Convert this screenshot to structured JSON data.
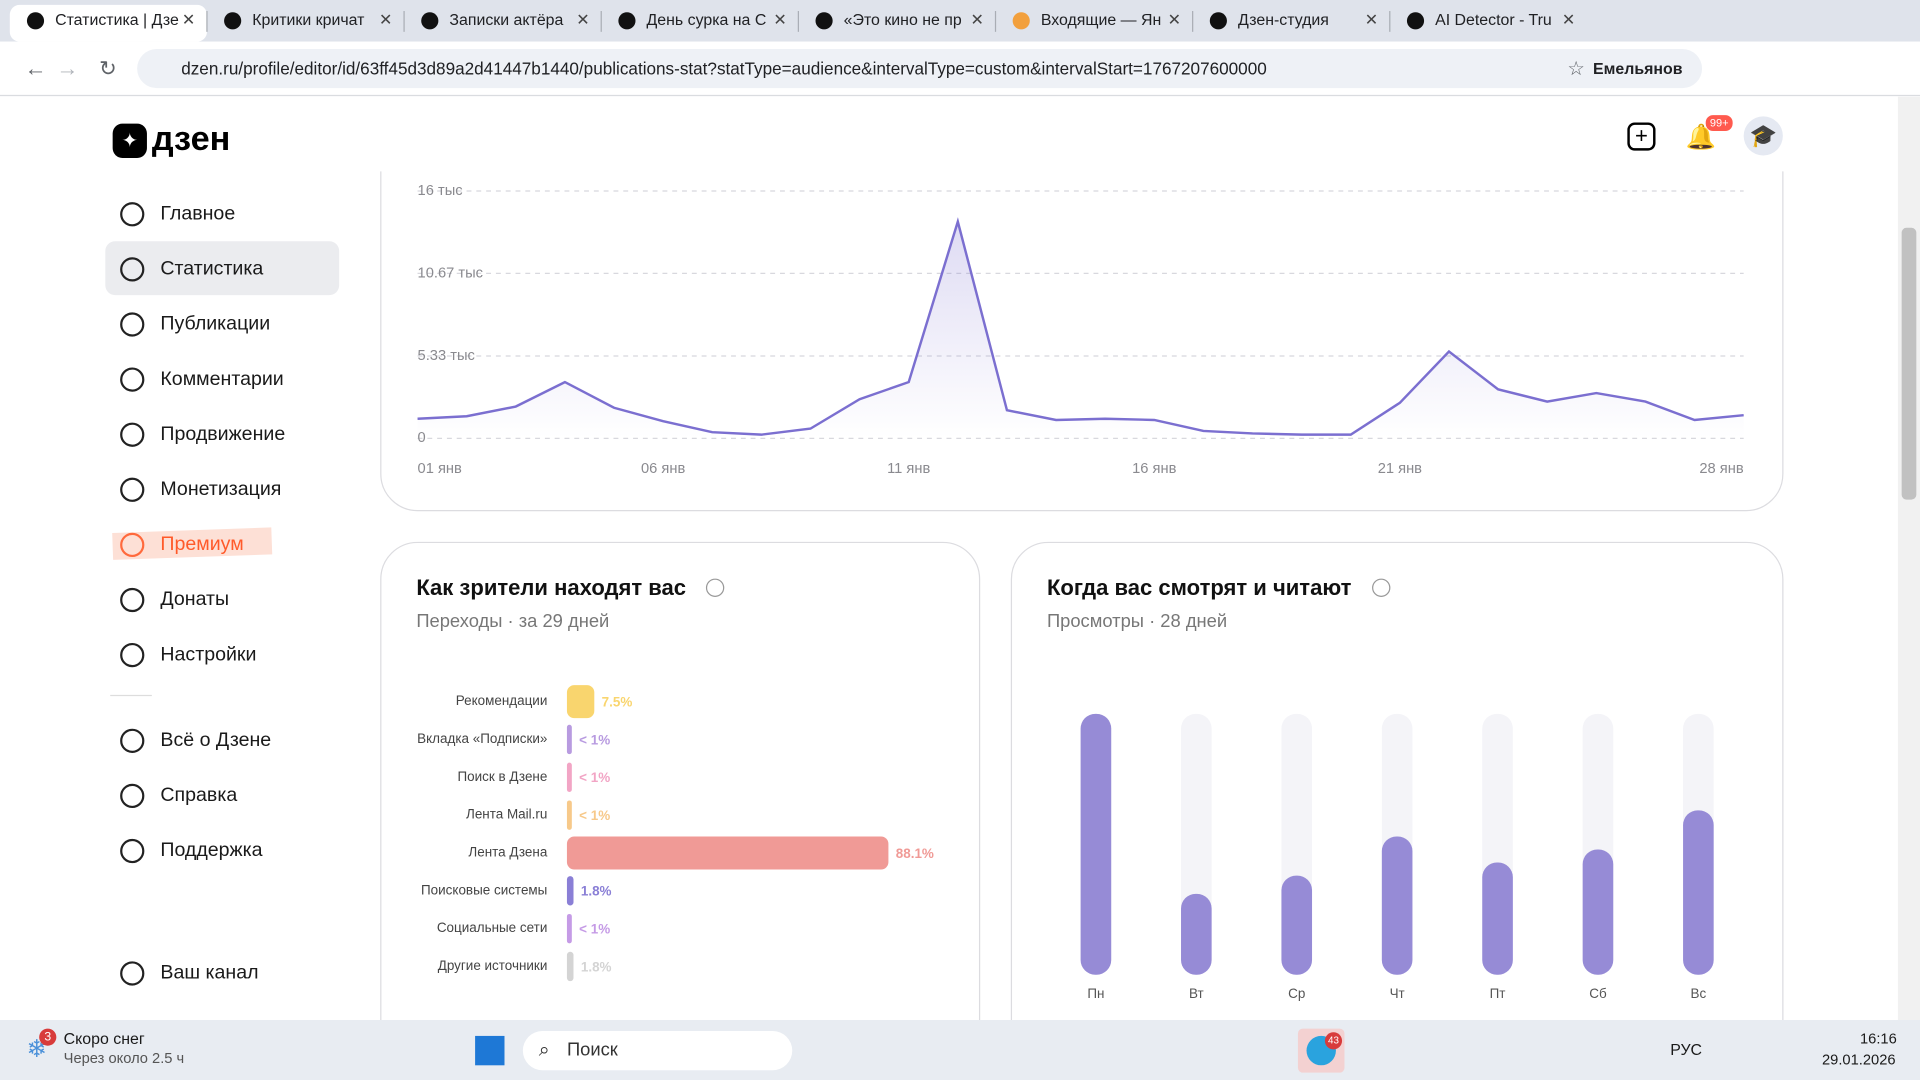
{
  "browser": {
    "tabs": [
      "Статистика | Дзе",
      "Критики кричат",
      "Записки актёра",
      "День сурка на С",
      "«Это кино не пр",
      "Входящие — Ян",
      "Дзен-студия",
      "AI Detector - Tru"
    ],
    "url": "dzen.ru/profile/editor/id/63ff45d3d89a2d41447b1440/publications-stat?statType=audience&intervalType=custom&intervalStart=1767207600000",
    "profile": "Емельянов"
  },
  "header": {
    "logo": "дзен",
    "notifications": "99+"
  },
  "nav": {
    "items": [
      "Главное",
      "Статистика",
      "Публикации",
      "Комментарии",
      "Продвижение",
      "Монетизация",
      "Премиум",
      "Донаты",
      "Настройки"
    ],
    "extra": [
      "Всё о Дзене",
      "Справка",
      "Поддержка"
    ],
    "channel": "Ваш канал"
  },
  "chart_data": [
    {
      "type": "line",
      "categories": [
        "01 янв",
        null,
        null,
        null,
        null,
        "06 янв",
        null,
        null,
        null,
        null,
        "11 янв",
        null,
        null,
        null,
        null,
        "16 янв",
        null,
        null,
        null,
        null,
        "21 янв",
        null,
        null,
        null,
        null,
        null,
        null,
        "28 янв"
      ],
      "series": [
        {
          "color": "#7b6fd0",
          "values": [
            1270,
            1430,
            2060,
            3640,
            1980,
            1110,
            400,
            240,
            630,
            2530,
            3640,
            14020,
            1820,
            1190,
            1270,
            1190,
            480,
            320,
            240,
            240,
            2300,
            5620,
            3170,
            2380,
            2930,
            2380,
            1190,
            1500
          ]
        }
      ],
      "ylim": [
        0,
        16000
      ],
      "yticks": [
        0,
        {
          "value": 5330,
          "label": "5.33 тыс"
        },
        {
          "value": 10670,
          "label": "10.67 тыс"
        },
        {
          "value": 16000,
          "label": "16 тыс"
        }
      ],
      "grid": true
    },
    {
      "type": "hbar",
      "title": "Как зрители находят вас",
      "subtitle": "Переходы · за 29 дней",
      "categories": [
        "Рекомендации",
        "Вкладка «Подписки»",
        "Поиск в Дзене",
        "Лента Mail.ru",
        "Лента Дзена",
        "Поисковые системы",
        "Социальные сети",
        "Другие источники"
      ],
      "values": [
        7.5,
        0.5,
        0.5,
        0.5,
        88.1,
        1.8,
        0.5,
        1.8
      ],
      "value_labels": [
        "7.5%",
        "< 1%",
        "< 1%",
        "< 1%",
        "88.1%",
        "1.8%",
        "< 1%",
        "1.8%"
      ],
      "colors": [
        "#f9d56e",
        "#b89be0",
        "#f2a5c5",
        "#f7c98a",
        "#f09a96",
        "#8a7fd6",
        "#c59be6",
        "#d4d4d4"
      ],
      "xlim": [
        0,
        100
      ]
    },
    {
      "type": "column",
      "title": "Когда вас смотрят и читают",
      "subtitle": "Просмотры · 28 дней",
      "categories": [
        "Пн",
        "Вт",
        "Ср",
        "Чт",
        "Пт",
        "Сб",
        "Вс"
      ],
      "values": [
        100,
        31,
        38,
        53,
        43,
        48,
        63
      ],
      "color": "#968bd6",
      "ylim": [
        0,
        100
      ]
    }
  ],
  "taskbar": {
    "weather": "Скоро снег",
    "weather_sub": "Через около 2.5 ч",
    "weather_badge": "3",
    "search": "Поиск",
    "telegram_badge": "43",
    "lang": "РУС",
    "time": "16:16",
    "date": "29.01.2026"
  }
}
